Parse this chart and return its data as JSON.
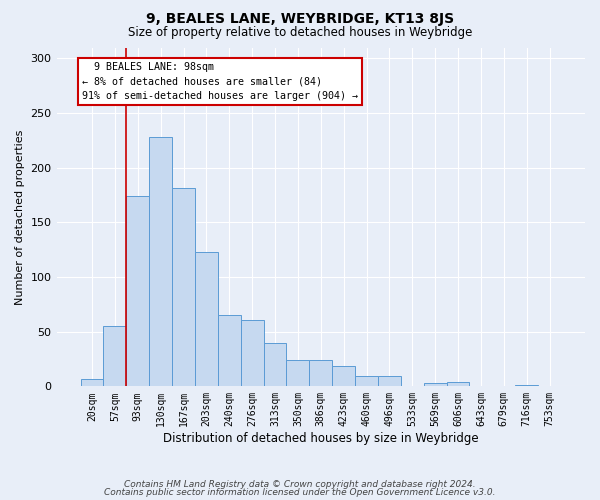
{
  "title": "9, BEALES LANE, WEYBRIDGE, KT13 8JS",
  "subtitle": "Size of property relative to detached houses in Weybridge",
  "xlabel": "Distribution of detached houses by size in Weybridge",
  "ylabel": "Number of detached properties",
  "bar_labels": [
    "20sqm",
    "57sqm",
    "93sqm",
    "130sqm",
    "167sqm",
    "203sqm",
    "240sqm",
    "276sqm",
    "313sqm",
    "350sqm",
    "386sqm",
    "423sqm",
    "460sqm",
    "496sqm",
    "533sqm",
    "569sqm",
    "606sqm",
    "643sqm",
    "679sqm",
    "716sqm",
    "753sqm"
  ],
  "bar_values": [
    7,
    55,
    174,
    228,
    181,
    123,
    65,
    61,
    40,
    24,
    24,
    19,
    9,
    9,
    0,
    3,
    4,
    0,
    0,
    1,
    0
  ],
  "bar_color": "#c6d9f0",
  "bar_edge_color": "#5b9bd5",
  "ylim": [
    0,
    310
  ],
  "yticks": [
    0,
    50,
    100,
    150,
    200,
    250,
    300
  ],
  "vline_x_idx": 2,
  "vline_color": "#cc0000",
  "annotation_title": "9 BEALES LANE: 98sqm",
  "annotation_line1": "← 8% of detached houses are smaller (84)",
  "annotation_line2": "91% of semi-detached houses are larger (904) →",
  "annotation_box_color": "#cc0000",
  "footer1": "Contains HM Land Registry data © Crown copyright and database right 2024.",
  "footer2": "Contains public sector information licensed under the Open Government Licence v3.0.",
  "bg_color": "#e8eef8",
  "grid_color": "#ffffff",
  "title_fontsize": 10,
  "subtitle_fontsize": 8.5,
  "xlabel_fontsize": 8.5,
  "ylabel_fontsize": 8,
  "tick_fontsize": 7,
  "footer_fontsize": 6.5
}
